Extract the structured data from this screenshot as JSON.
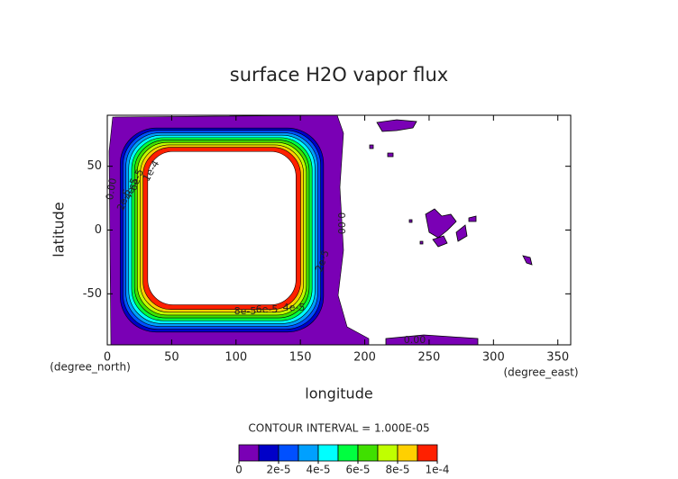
{
  "chart_data": {
    "type": "contour",
    "title": "surface H2O vapor flux",
    "x_label": "longitude",
    "y_label": "latitude",
    "x_units": "(degree_east)",
    "y_units": "(degree_north)",
    "xlim": [
      0,
      360
    ],
    "ylim": [
      -90,
      90
    ],
    "xticks": [
      0,
      50,
      100,
      150,
      200,
      250,
      300,
      350
    ],
    "yticks": [
      -50,
      0,
      50
    ],
    "colorbar_title": "CONTOUR INTERVAL = 1.000E-05",
    "levels": [
      0,
      1e-05,
      2e-05,
      3e-05,
      4e-05,
      5e-05,
      6e-05,
      7e-05,
      8e-05,
      9e-05,
      0.0001
    ],
    "colorbar_ticks": [
      0,
      {
        "value": 2e-05,
        "label": "2e-5"
      },
      {
        "value": 4e-05,
        "label": "4e-5"
      },
      {
        "value": 6e-05,
        "label": "6e-5"
      },
      {
        "value": 8e-05,
        "label": "8e-5"
      },
      {
        "value": 0.0001,
        "label": "1e-4"
      }
    ],
    "colors": [
      "#7a00b5",
      "#0000c8",
      "#0050ff",
      "#00a0ff",
      "#00ffff",
      "#00ff40",
      "#40e000",
      "#c0ff00",
      "#ffd000",
      "#ff2000"
    ],
    "contour_labels": [
      "0.00",
      "2e-5",
      "4e-5",
      "6e-5",
      "1e-4",
      "0.00",
      "2e-5",
      "8e-5",
      "6e-5",
      "4e-5",
      "0.00"
    ]
  }
}
